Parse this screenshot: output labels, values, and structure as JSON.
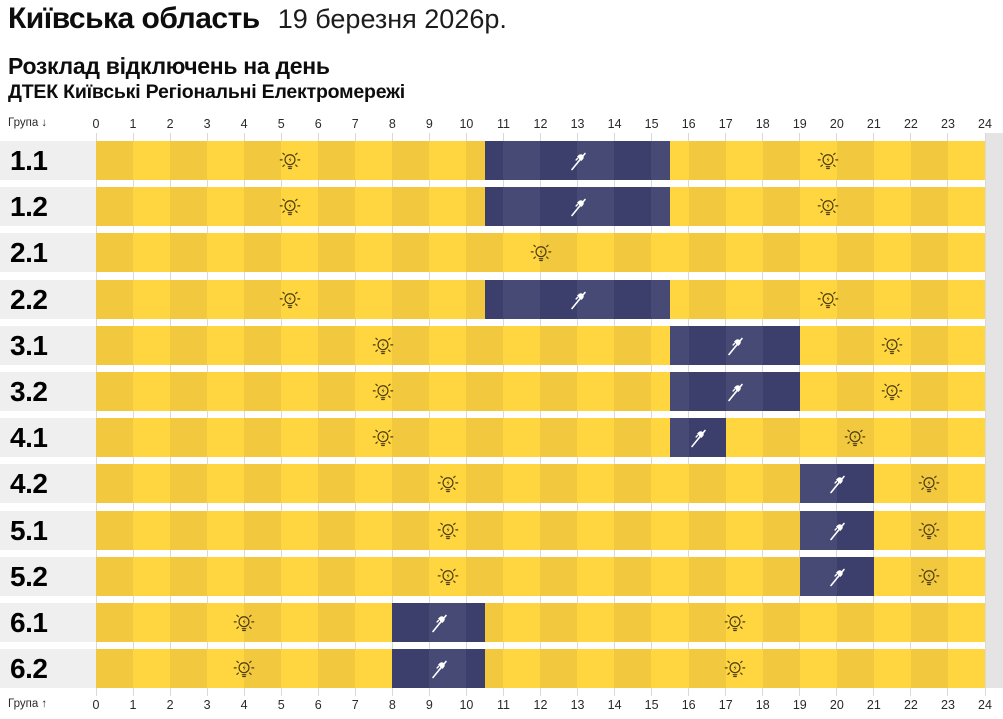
{
  "header": {
    "region": "Київська область",
    "date": "19 березня 2026р.",
    "schedule_title": "Розклад відключень на день",
    "company": "ДТЕК Київські Регіональні Електромережі"
  },
  "axis": {
    "group_label_top": "Група ↓",
    "group_label_bottom": "Група ↑",
    "hour_ticks": [
      "0",
      "1",
      "2",
      "3",
      "4",
      "5",
      "6",
      "7",
      "8",
      "9",
      "10",
      "11",
      "12",
      "13",
      "14",
      "15",
      "16",
      "17",
      "18",
      "19",
      "20",
      "21",
      "22",
      "23",
      "24"
    ]
  },
  "chart_data": {
    "type": "heatmap",
    "title": "Розклад відключень на день",
    "subtitle": "ДТЕК Київські Регіональні Електромережі — Київська область, 19 березня 2026р.",
    "x_range": [
      0,
      24
    ],
    "x_ticks": [
      0,
      1,
      2,
      3,
      4,
      5,
      6,
      7,
      8,
      9,
      10,
      11,
      12,
      13,
      14,
      15,
      16,
      17,
      18,
      19,
      20,
      21,
      22,
      23,
      24
    ],
    "ylabel": "Група",
    "grid": true,
    "rows": [
      {
        "group": "1.1",
        "off_intervals": [
          [
            10.5,
            15.5
          ]
        ],
        "on_intervals": [
          [
            0,
            10.5
          ],
          [
            15.5,
            24
          ]
        ]
      },
      {
        "group": "1.2",
        "off_intervals": [
          [
            10.5,
            15.5
          ]
        ],
        "on_intervals": [
          [
            0,
            10.5
          ],
          [
            15.5,
            24
          ]
        ]
      },
      {
        "group": "2.1",
        "off_intervals": [],
        "on_intervals": [
          [
            0,
            24
          ]
        ]
      },
      {
        "group": "2.2",
        "off_intervals": [
          [
            10.5,
            15.5
          ]
        ],
        "on_intervals": [
          [
            0,
            10.5
          ],
          [
            15.5,
            24
          ]
        ]
      },
      {
        "group": "3.1",
        "off_intervals": [
          [
            15.5,
            19
          ]
        ],
        "on_intervals": [
          [
            0,
            15.5
          ],
          [
            19,
            24
          ]
        ]
      },
      {
        "group": "3.2",
        "off_intervals": [
          [
            15.5,
            19
          ]
        ],
        "on_intervals": [
          [
            0,
            15.5
          ],
          [
            19,
            24
          ]
        ]
      },
      {
        "group": "4.1",
        "off_intervals": [
          [
            15.5,
            17
          ]
        ],
        "on_intervals": [
          [
            0,
            15.5
          ],
          [
            17,
            24
          ]
        ]
      },
      {
        "group": "4.2",
        "off_intervals": [
          [
            19,
            21
          ]
        ],
        "on_intervals": [
          [
            0,
            19
          ],
          [
            21,
            24
          ]
        ]
      },
      {
        "group": "5.1",
        "off_intervals": [
          [
            19,
            21
          ]
        ],
        "on_intervals": [
          [
            0,
            19
          ],
          [
            21,
            24
          ]
        ]
      },
      {
        "group": "5.2",
        "off_intervals": [
          [
            19,
            21
          ]
        ],
        "on_intervals": [
          [
            0,
            19
          ],
          [
            21,
            24
          ]
        ]
      },
      {
        "group": "6.1",
        "off_intervals": [
          [
            8,
            10.5
          ]
        ],
        "on_intervals": [
          [
            0,
            8
          ],
          [
            10.5,
            24
          ]
        ]
      },
      {
        "group": "6.2",
        "off_intervals": [
          [
            8,
            10.5
          ]
        ],
        "on_intervals": [
          [
            0,
            8
          ],
          [
            10.5,
            24
          ]
        ]
      }
    ],
    "icon_rule": "bulb-zap-icon at midpoint of each power-on stretch; plug-off-icon at midpoint of each outage stretch"
  },
  "colors": {
    "on_even": "#F2C83F",
    "on_odd": "#FFD540",
    "off_even": "#3C3F6B",
    "off_odd": "#474A75",
    "label_cell_bg": "#EFEFEF",
    "right_margin_bg": "#E4E4E4",
    "gridline": "#D9D9D9",
    "background": "#FFFFFF",
    "bulb_icon": "#4A3D12",
    "plug_off_icon": "#FFFFFF",
    "text": "#111111"
  },
  "icons": {
    "power_on": "bulb-zap-icon",
    "power_off": "plug-off-icon"
  }
}
